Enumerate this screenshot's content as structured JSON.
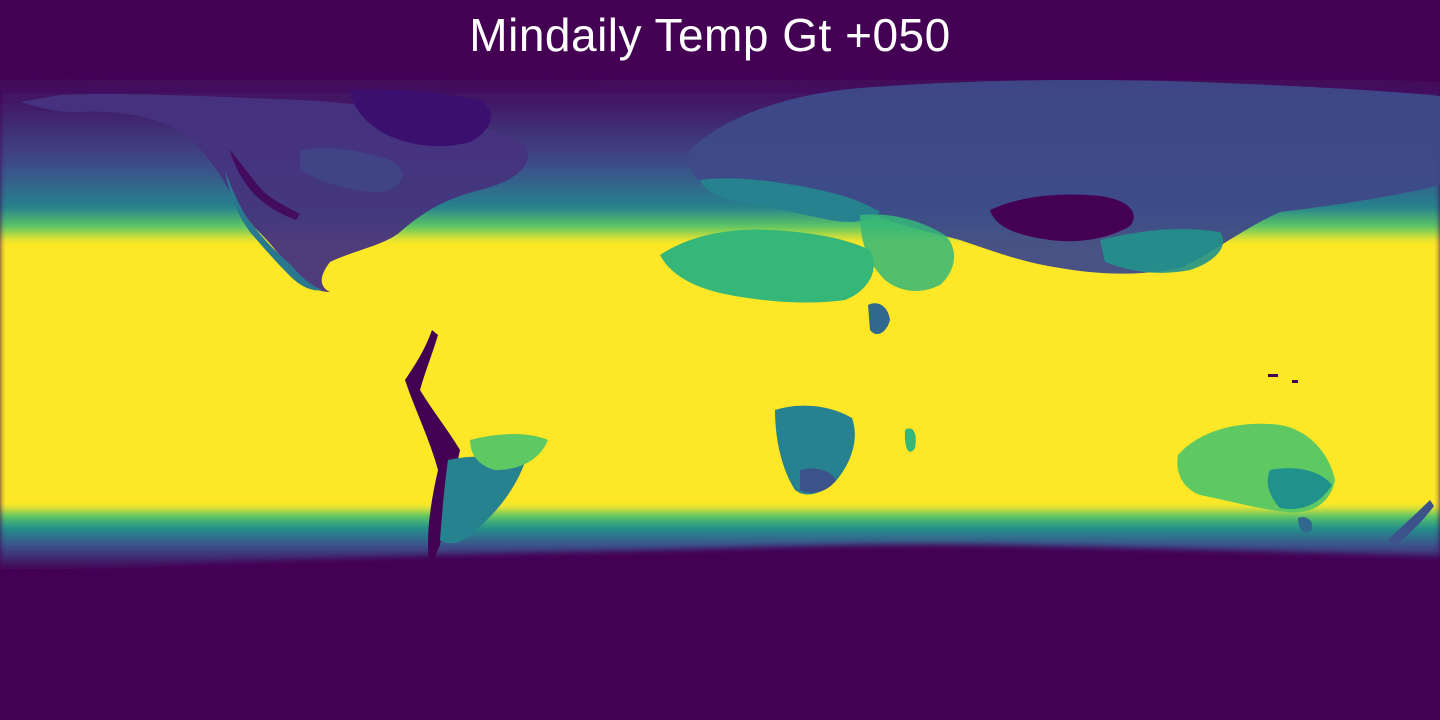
{
  "title": "Mindaily Temp Gt +050",
  "colormap": {
    "name": "viridis",
    "stops": [
      "#440154",
      "#3b528b",
      "#21918c",
      "#5ec962",
      "#fde725"
    ]
  },
  "map": {
    "projection": "equirectangular",
    "extent": {
      "lon": [
        -180,
        180
      ],
      "lat": [
        -90,
        90
      ]
    }
  }
}
